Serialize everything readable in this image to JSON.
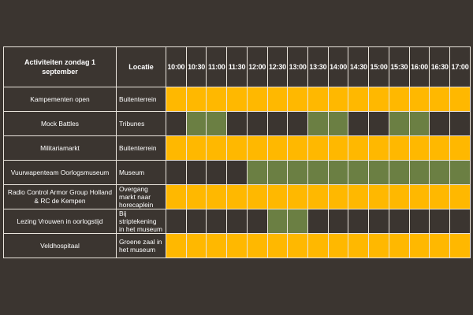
{
  "header": {
    "activity_label": "Activiteiten zondag 1 september",
    "location_label": "Locatie",
    "times": [
      "10:00",
      "10:30",
      "11:00",
      "11:30",
      "12:00",
      "12:30",
      "13:00",
      "13:30",
      "14:00",
      "14:30",
      "15:00",
      "15:30",
      "16:00",
      "16:30",
      "17:00"
    ]
  },
  "colors": {
    "background": "#3b3530",
    "yellow": "#ffb800",
    "green": "#6b7f43",
    "grid": "#e9e4dc",
    "text": "#ffffff"
  },
  "legend_codes": {
    "y": "yellow",
    "g": "green",
    "d": "dark"
  },
  "rows": [
    {
      "activity": "Kampementen open",
      "location": "Buitenterrein",
      "slots": [
        "y",
        "y",
        "y",
        "y",
        "y",
        "y",
        "y",
        "y",
        "y",
        "y",
        "y",
        "y",
        "y",
        "y",
        "y"
      ]
    },
    {
      "activity": "Mock Battles",
      "location": "Tribunes",
      "slots": [
        "d",
        "g",
        "g",
        "d",
        "d",
        "d",
        "d",
        "g",
        "g",
        "d",
        "d",
        "g",
        "g",
        "d",
        "d"
      ]
    },
    {
      "activity": "Militariamarkt",
      "location": "Buitenterrein",
      "slots": [
        "y",
        "y",
        "y",
        "y",
        "y",
        "y",
        "y",
        "y",
        "y",
        "y",
        "y",
        "y",
        "y",
        "y",
        "y"
      ]
    },
    {
      "activity": "Vuurwapenteam Oorlogsmuseum",
      "location": "Museum",
      "slots": [
        "d",
        "d",
        "d",
        "d",
        "g",
        "g",
        "g",
        "g",
        "g",
        "g",
        "g",
        "g",
        "g",
        "g",
        "g"
      ]
    },
    {
      "activity": "Radio Control Armor Group Holland & RC de Kempen",
      "location": "Overgang markt naar horecaplein",
      "slots": [
        "y",
        "y",
        "y",
        "y",
        "y",
        "y",
        "y",
        "y",
        "y",
        "y",
        "y",
        "y",
        "y",
        "y",
        "y"
      ]
    },
    {
      "activity": "Lezing Vrouwen in oorlogstijd",
      "location": "Bij striptekening in het museum",
      "slots": [
        "d",
        "d",
        "d",
        "d",
        "d",
        "g",
        "g",
        "d",
        "d",
        "d",
        "d",
        "d",
        "d",
        "d",
        "d"
      ]
    },
    {
      "activity": "Veldhospitaal",
      "location": "Groene zaal in het museum",
      "slots": [
        "y",
        "y",
        "y",
        "y",
        "y",
        "y",
        "y",
        "y",
        "y",
        "y",
        "y",
        "y",
        "y",
        "y",
        "y"
      ]
    }
  ]
}
